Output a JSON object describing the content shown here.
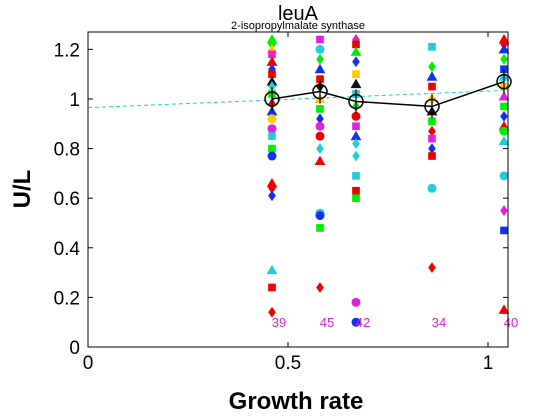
{
  "chart_data": {
    "type": "scatter",
    "title": "leuA",
    "subtitle": "2-isopropylmalate synthase",
    "xlabel": "Growth rate",
    "ylabel": "U/L",
    "xlim": [
      0,
      1.05
    ],
    "ylim": [
      0,
      1.27
    ],
    "xticks": [
      0,
      0.5,
      1
    ],
    "xtick_labels": [
      "0",
      "0.5",
      "1"
    ],
    "yticks": [
      0,
      0.2,
      0.4,
      0.6,
      0.8,
      1.0,
      1.2
    ],
    "ytick_labels": [
      "0",
      "0.2",
      "0.4",
      "0.6",
      "0.8",
      "1",
      "1.2"
    ],
    "grid": false,
    "legend": "none",
    "growth_rates": [
      0.46,
      0.58,
      0.67,
      0.86,
      1.04
    ],
    "counts": [
      {
        "x": 0.46,
        "label": "39"
      },
      {
        "x": 0.58,
        "label": "45"
      },
      {
        "x": 0.67,
        "label": "42"
      },
      {
        "x": 0.86,
        "label": "34"
      },
      {
        "x": 1.04,
        "label": "40"
      }
    ],
    "mean_series": {
      "x": [
        0.46,
        0.58,
        0.67,
        0.86,
        1.04
      ],
      "y": [
        1.0,
        1.03,
        0.99,
        0.97,
        1.07
      ],
      "color": "#000000"
    },
    "trend_line": {
      "x": [
        0,
        1.05
      ],
      "y": [
        0.965,
        1.035
      ],
      "color": "#22ccdd",
      "dashed": true
    },
    "scatter_points": [
      {
        "x": 0.46,
        "y": 1.24,
        "color": "#00ee00",
        "marker": "triangle"
      },
      {
        "x": 0.46,
        "y": 1.22,
        "color": "#00ee00",
        "marker": "diamond"
      },
      {
        "x": 0.46,
        "y": 1.2,
        "color": "#ffcc00",
        "marker": "triangle"
      },
      {
        "x": 0.46,
        "y": 1.18,
        "color": "#dd22dd",
        "marker": "square"
      },
      {
        "x": 0.46,
        "y": 1.15,
        "color": "#ee0000",
        "marker": "triangle"
      },
      {
        "x": 0.46,
        "y": 1.12,
        "color": "#1133ee",
        "marker": "diamond"
      },
      {
        "x": 0.46,
        "y": 1.1,
        "color": "#ee0000",
        "marker": "square"
      },
      {
        "x": 0.46,
        "y": 1.07,
        "color": "#111111",
        "marker": "triangle"
      },
      {
        "x": 0.46,
        "y": 1.05,
        "color": "#22ccdd",
        "marker": "diamond"
      },
      {
        "x": 0.46,
        "y": 1.02,
        "color": "#00ee00",
        "marker": "square"
      },
      {
        "x": 0.46,
        "y": 0.98,
        "color": "#ee0000",
        "marker": "diamond"
      },
      {
        "x": 0.46,
        "y": 0.95,
        "color": "#1133ee",
        "marker": "triangle"
      },
      {
        "x": 0.46,
        "y": 0.92,
        "color": "#ffcc00",
        "marker": "circle"
      },
      {
        "x": 0.46,
        "y": 0.88,
        "color": "#dd22dd",
        "marker": "circle"
      },
      {
        "x": 0.46,
        "y": 0.85,
        "color": "#22ccdd",
        "marker": "square"
      },
      {
        "x": 0.46,
        "y": 0.8,
        "color": "#00ee00",
        "marker": "square"
      },
      {
        "x": 0.46,
        "y": 0.77,
        "color": "#1133ee",
        "marker": "circle"
      },
      {
        "x": 0.46,
        "y": 0.66,
        "color": "#ee0000",
        "marker": "triangle"
      },
      {
        "x": 0.46,
        "y": 0.64,
        "color": "#ee0000",
        "marker": "diamond"
      },
      {
        "x": 0.46,
        "y": 0.61,
        "color": "#1133ee",
        "marker": "diamond"
      },
      {
        "x": 0.46,
        "y": 0.31,
        "color": "#22ccdd",
        "marker": "triangle"
      },
      {
        "x": 0.46,
        "y": 0.24,
        "color": "#ee0000",
        "marker": "square"
      },
      {
        "x": 0.46,
        "y": 0.14,
        "color": "#ee0000",
        "marker": "diamond"
      },
      {
        "x": 0.58,
        "y": 1.24,
        "color": "#dd22dd",
        "marker": "square"
      },
      {
        "x": 0.58,
        "y": 1.2,
        "color": "#22ccdd",
        "marker": "circle"
      },
      {
        "x": 0.58,
        "y": 1.16,
        "color": "#00ee00",
        "marker": "diamond"
      },
      {
        "x": 0.58,
        "y": 1.12,
        "color": "#1133ee",
        "marker": "triangle"
      },
      {
        "x": 0.58,
        "y": 1.08,
        "color": "#ee0000",
        "marker": "square"
      },
      {
        "x": 0.58,
        "y": 1.05,
        "color": "#111111",
        "marker": "diamond"
      },
      {
        "x": 0.58,
        "y": 1.0,
        "color": "#ffcc00",
        "marker": "triangle"
      },
      {
        "x": 0.58,
        "y": 0.96,
        "color": "#00ee00",
        "marker": "square"
      },
      {
        "x": 0.58,
        "y": 0.92,
        "color": "#1133ee",
        "marker": "diamond"
      },
      {
        "x": 0.58,
        "y": 0.89,
        "color": "#dd22dd",
        "marker": "circle"
      },
      {
        "x": 0.58,
        "y": 0.85,
        "color": "#ee0000",
        "marker": "circle"
      },
      {
        "x": 0.58,
        "y": 0.8,
        "color": "#22ccdd",
        "marker": "diamond"
      },
      {
        "x": 0.58,
        "y": 0.75,
        "color": "#ee0000",
        "marker": "triangle"
      },
      {
        "x": 0.58,
        "y": 0.54,
        "color": "#22ccdd",
        "marker": "circle"
      },
      {
        "x": 0.58,
        "y": 0.53,
        "color": "#1133ee",
        "marker": "circle"
      },
      {
        "x": 0.58,
        "y": 0.48,
        "color": "#00ee00",
        "marker": "square"
      },
      {
        "x": 0.58,
        "y": 0.24,
        "color": "#ee0000",
        "marker": "diamond"
      },
      {
        "x": 0.67,
        "y": 1.24,
        "color": "#dd22dd",
        "marker": "diamond"
      },
      {
        "x": 0.67,
        "y": 1.22,
        "color": "#ee0000",
        "marker": "square"
      },
      {
        "x": 0.67,
        "y": 1.19,
        "color": "#00ee00",
        "marker": "triangle"
      },
      {
        "x": 0.67,
        "y": 1.15,
        "color": "#1133ee",
        "marker": "diamond"
      },
      {
        "x": 0.67,
        "y": 1.1,
        "color": "#ffcc00",
        "marker": "square"
      },
      {
        "x": 0.67,
        "y": 1.06,
        "color": "#111111",
        "marker": "triangle"
      },
      {
        "x": 0.67,
        "y": 1.02,
        "color": "#22ccdd",
        "marker": "square"
      },
      {
        "x": 0.67,
        "y": 0.97,
        "color": "#00ee00",
        "marker": "diamond"
      },
      {
        "x": 0.67,
        "y": 0.93,
        "color": "#ee0000",
        "marker": "circle"
      },
      {
        "x": 0.67,
        "y": 0.89,
        "color": "#dd22dd",
        "marker": "square"
      },
      {
        "x": 0.67,
        "y": 0.85,
        "color": "#1133ee",
        "marker": "triangle"
      },
      {
        "x": 0.67,
        "y": 0.82,
        "color": "#22ccdd",
        "marker": "diamond"
      },
      {
        "x": 0.67,
        "y": 0.77,
        "color": "#22ccdd",
        "marker": "diamond"
      },
      {
        "x": 0.67,
        "y": 0.69,
        "color": "#22ccdd",
        "marker": "square"
      },
      {
        "x": 0.67,
        "y": 0.63,
        "color": "#ee0000",
        "marker": "square"
      },
      {
        "x": 0.67,
        "y": 0.6,
        "color": "#00ee00",
        "marker": "square"
      },
      {
        "x": 0.67,
        "y": 0.18,
        "color": "#dd22dd",
        "marker": "circle"
      },
      {
        "x": 0.67,
        "y": 0.1,
        "color": "#1133ee",
        "marker": "circle"
      },
      {
        "x": 0.86,
        "y": 1.21,
        "color": "#22ccdd",
        "marker": "square"
      },
      {
        "x": 0.86,
        "y": 1.13,
        "color": "#00ee00",
        "marker": "diamond"
      },
      {
        "x": 0.86,
        "y": 1.09,
        "color": "#1133ee",
        "marker": "triangle"
      },
      {
        "x": 0.86,
        "y": 1.05,
        "color": "#ee0000",
        "marker": "square"
      },
      {
        "x": 0.86,
        "y": 1.0,
        "color": "#ffcc00",
        "marker": "diamond"
      },
      {
        "x": 0.86,
        "y": 0.95,
        "color": "#111111",
        "marker": "triangle"
      },
      {
        "x": 0.86,
        "y": 0.91,
        "color": "#00ee00",
        "marker": "square"
      },
      {
        "x": 0.86,
        "y": 0.87,
        "color": "#ee0000",
        "marker": "diamond"
      },
      {
        "x": 0.86,
        "y": 0.84,
        "color": "#dd22dd",
        "marker": "square"
      },
      {
        "x": 0.86,
        "y": 0.8,
        "color": "#1133ee",
        "marker": "diamond"
      },
      {
        "x": 0.86,
        "y": 0.77,
        "color": "#ee0000",
        "marker": "square"
      },
      {
        "x": 0.86,
        "y": 0.64,
        "color": "#22ccdd",
        "marker": "circle"
      },
      {
        "x": 0.86,
        "y": 0.32,
        "color": "#ee0000",
        "marker": "diamond"
      },
      {
        "x": 1.04,
        "y": 1.24,
        "color": "#ee0000",
        "marker": "triangle"
      },
      {
        "x": 1.04,
        "y": 1.22,
        "color": "#ee0000",
        "marker": "diamond"
      },
      {
        "x": 1.04,
        "y": 1.2,
        "color": "#1133ee",
        "marker": "triangle"
      },
      {
        "x": 1.04,
        "y": 1.16,
        "color": "#00ee00",
        "marker": "diamond"
      },
      {
        "x": 1.04,
        "y": 1.12,
        "color": "#1133ee",
        "marker": "square"
      },
      {
        "x": 1.04,
        "y": 1.09,
        "color": "#22ccdd",
        "marker": "triangle"
      },
      {
        "x": 1.04,
        "y": 1.05,
        "color": "#ffcc00",
        "marker": "square"
      },
      {
        "x": 1.04,
        "y": 1.01,
        "color": "#dd22dd",
        "marker": "triangle"
      },
      {
        "x": 1.04,
        "y": 0.97,
        "color": "#00ee00",
        "marker": "square"
      },
      {
        "x": 1.04,
        "y": 0.93,
        "color": "#1133ee",
        "marker": "diamond"
      },
      {
        "x": 1.04,
        "y": 0.89,
        "color": "#ee0000",
        "marker": "triangle"
      },
      {
        "x": 1.04,
        "y": 0.87,
        "color": "#00ee00",
        "marker": "circle"
      },
      {
        "x": 1.04,
        "y": 0.83,
        "color": "#22ccdd",
        "marker": "triangle"
      },
      {
        "x": 1.04,
        "y": 0.69,
        "color": "#22ccdd",
        "marker": "circle"
      },
      {
        "x": 1.04,
        "y": 0.55,
        "color": "#dd22dd",
        "marker": "diamond"
      },
      {
        "x": 1.04,
        "y": 0.47,
        "color": "#1133ee",
        "marker": "square"
      },
      {
        "x": 1.04,
        "y": 0.15,
        "color": "#ee0000",
        "marker": "triangle"
      }
    ]
  }
}
